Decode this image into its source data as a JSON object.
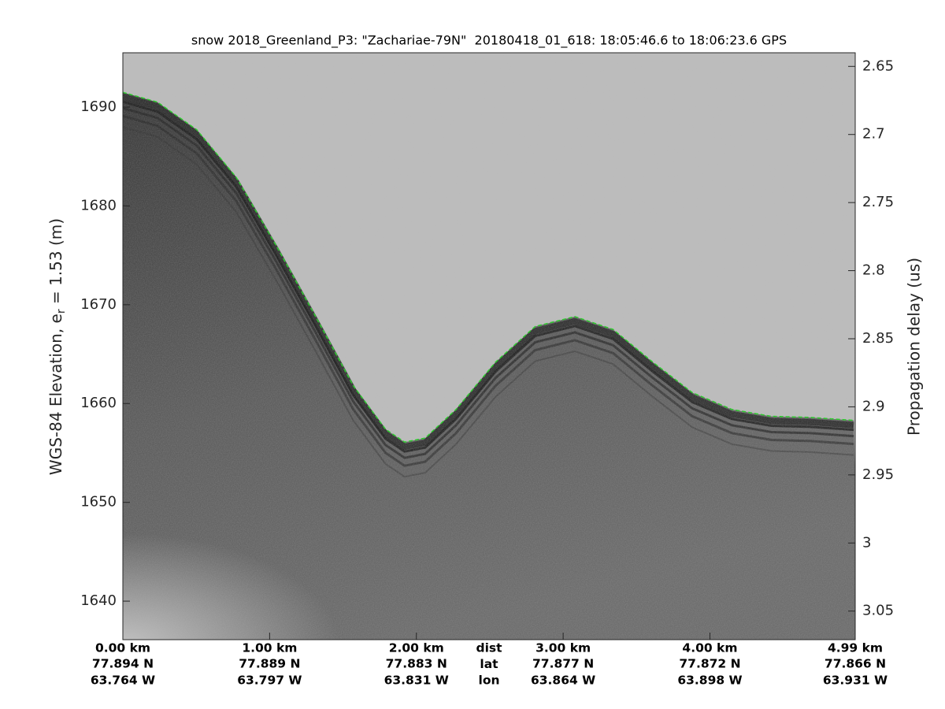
{
  "chart_data": {
    "type": "line",
    "title": "snow 2018_Greenland_P3: \"Zachariae-79N\"  20180418_01_618: 18:05:46.6 to 18:06:23.6 GPS",
    "ylabel": "WGS-84 Elevation, e",
    "ylabel_sub": "r",
    "ylabel_end": " = 1.53 (m)",
    "y2label": "Propagation delay (us)",
    "x": [
      0,
      0.236,
      0.504,
      0.772,
      1.04,
      1.31,
      1.57,
      1.79,
      1.92,
      2.06,
      2.27,
      2.54,
      2.81,
      3.08,
      3.34,
      3.61,
      3.88,
      4.15,
      4.42,
      4.68,
      4.98
    ],
    "series": [
      {
        "color": "#22cc22",
        "values": [
          1691.5,
          1690.5,
          1687.7,
          1682.9,
          1676.1,
          1668.9,
          1661.8,
          1657.4,
          1656.1,
          1656.5,
          1659.4,
          1664.2,
          1667.8,
          1668.8,
          1667.5,
          1664.2,
          1661.1,
          1659.4,
          1658.7,
          1658.6,
          1658.3
        ]
      }
    ],
    "xlim": [
      0,
      4.99
    ],
    "xticks": [
      {
        "value": 0,
        "label": "0.00 km"
      },
      {
        "value": 1,
        "label": "1.00 km"
      },
      {
        "value": 2,
        "label": "2.00 km"
      },
      {
        "value": 3,
        "label": "3.00 km"
      },
      {
        "value": 4,
        "label": "4.00 km"
      },
      {
        "value": 4.99,
        "label": "4.99 km"
      }
    ],
    "lat_labels": [
      "77.894 N",
      "77.889 N",
      "77.883 N",
      "77.877 N",
      "77.872 N",
      "77.866 N"
    ],
    "lon_labels": [
      "63.764 W",
      "63.797 W",
      "63.831 W",
      "63.864 W",
      "63.898 W",
      "63.931 W"
    ],
    "row_labels": [
      "dist",
      "lat",
      "lon"
    ],
    "ylim": [
      1636.1,
      1695.5
    ],
    "yticks": [
      1640,
      1650,
      1660,
      1670,
      1680,
      1690
    ],
    "y2lim": [
      3.071,
      2.64
    ],
    "y2ticks": [
      2.65,
      2.7,
      2.75,
      2.8,
      2.85,
      2.9,
      2.95,
      3,
      3.05
    ]
  }
}
